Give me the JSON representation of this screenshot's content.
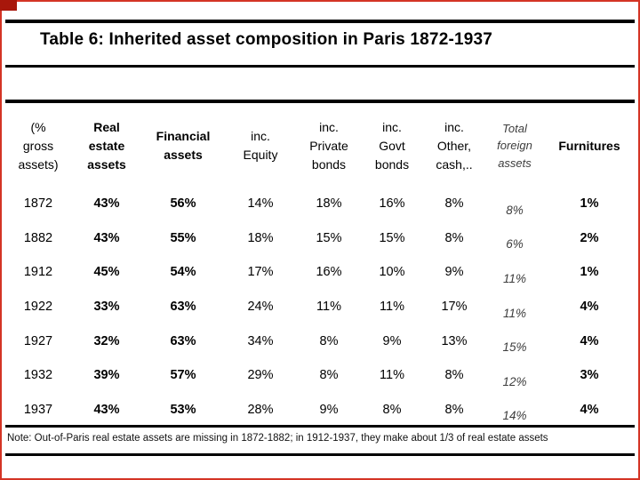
{
  "frame": {
    "accent_color": "#d43425",
    "accent_dark_color": "#a8170b"
  },
  "title": "Table 6: Inherited asset composition in Paris 1872-1937",
  "table": {
    "columns": [
      {
        "label": "(%\ngross\nassets)",
        "style": "regular"
      },
      {
        "label": "Real\nestate\nassets",
        "style": "bold"
      },
      {
        "label": "Financial\nassets",
        "style": "bold"
      },
      {
        "label": "inc.\nEquity",
        "style": "regular"
      },
      {
        "label": "inc.\nPrivate\nbonds",
        "style": "regular"
      },
      {
        "label": "inc.\nGovt\nbonds",
        "style": "regular"
      },
      {
        "label": "inc.\nOther,\ncash,..",
        "style": "regular"
      },
      {
        "label": "Total\nforeign\nassets",
        "style": "italic"
      },
      {
        "label": "Furnitures",
        "style": "bold"
      }
    ],
    "rows": [
      [
        "1872",
        "43%",
        "56%",
        "14%",
        "18%",
        "16%",
        "8%",
        "8%",
        "1%"
      ],
      [
        "1882",
        "43%",
        "55%",
        "18%",
        "15%",
        "15%",
        "8%",
        "6%",
        "2%"
      ],
      [
        "1912",
        "45%",
        "54%",
        "17%",
        "16%",
        "10%",
        "9%",
        "11%",
        "1%"
      ],
      [
        "1922",
        "33%",
        "63%",
        "24%",
        "11%",
        "11%",
        "17%",
        "11%",
        "4%"
      ],
      [
        "1927",
        "32%",
        "63%",
        "34%",
        "8%",
        "9%",
        "13%",
        "15%",
        "4%"
      ],
      [
        "1932",
        "39%",
        "57%",
        "29%",
        "8%",
        "11%",
        "8%",
        "12%",
        "3%"
      ],
      [
        "1937",
        "43%",
        "53%",
        "28%",
        "9%",
        "8%",
        "8%",
        "14%",
        "4%"
      ]
    ]
  },
  "note": "Note: Out-of-Paris real estate assets are missing in 1872-1882; in 1912-1937, they make about 1/3 of real estate assets"
}
